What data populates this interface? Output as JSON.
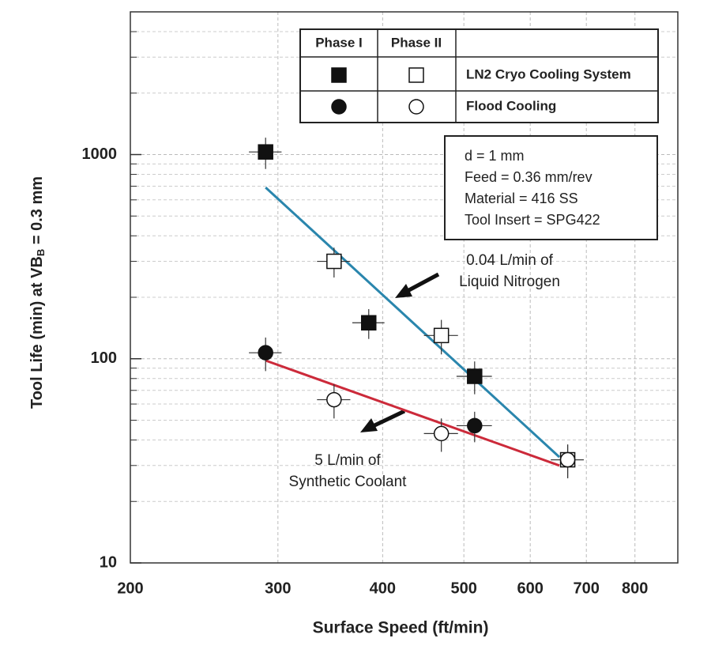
{
  "chart_data": {
    "type": "scatter",
    "xlabel": "Surface Speed (ft/min)",
    "ylabel": [
      "Tool Life (min) at VB",
      "B",
      " = 0.3 mm"
    ],
    "xscale": "log",
    "yscale": "log",
    "grid": true,
    "xlim": [
      200,
      900
    ],
    "ylim": [
      10,
      5000
    ],
    "xticks": [
      200,
      300,
      400,
      500,
      600,
      700,
      800
    ],
    "yticks": [
      10,
      100,
      1000
    ],
    "yminorticks": [
      20,
      30,
      40,
      50,
      60,
      70,
      80,
      90,
      200,
      300,
      400,
      500,
      600,
      700,
      800,
      900,
      2000,
      3000,
      4000
    ],
    "legend": {
      "columns": [
        "Phase I",
        "Phase II"
      ],
      "rows": [
        "LN2 Cryo Cooling System",
        "Flood Cooling"
      ]
    },
    "series": [
      {
        "row": 0,
        "column": 0,
        "marker": "square",
        "filled": true,
        "x": [
          290,
          385,
          515
        ],
        "values": [
          1030,
          150,
          82
        ],
        "xerr": [
          13,
          17,
          25
        ],
        "yerr": [
          180,
          25,
          15
        ]
      },
      {
        "row": 0,
        "column": 1,
        "marker": "square",
        "filled": false,
        "x": [
          350,
          470,
          665
        ],
        "values": [
          300,
          130,
          32
        ],
        "xerr": [
          16,
          22,
          30
        ],
        "yerr": [
          50,
          25,
          6
        ]
      },
      {
        "row": 1,
        "column": 0,
        "marker": "circle",
        "filled": true,
        "x": [
          290,
          515
        ],
        "values": [
          107,
          47
        ],
        "xerr": [
          13,
          25
        ],
        "yerr": [
          20,
          8
        ]
      },
      {
        "row": 1,
        "column": 1,
        "marker": "circle",
        "filled": false,
        "x": [
          350,
          470,
          665
        ],
        "values": [
          63,
          43,
          32
        ],
        "xerr": [
          16,
          22,
          30
        ],
        "yerr": [
          12,
          8,
          6
        ]
      }
    ],
    "fits": [
      {
        "color": "#2a86ad",
        "x": [
          290,
          650
        ],
        "values": [
          690,
          33
        ],
        "label": [
          "0.04 L/min of",
          "Liquid Nitrogen"
        ]
      },
      {
        "color": "#cc2a3a",
        "x": [
          290,
          650
        ],
        "values": [
          98,
          30
        ],
        "label": [
          "5 L/min of",
          "Synthetic Coolant"
        ]
      }
    ],
    "notes": [
      "d = 1 mm",
      "Feed = 0.36 mm/rev",
      "Material = 416 SS",
      "Tool Insert = SPG422"
    ]
  }
}
